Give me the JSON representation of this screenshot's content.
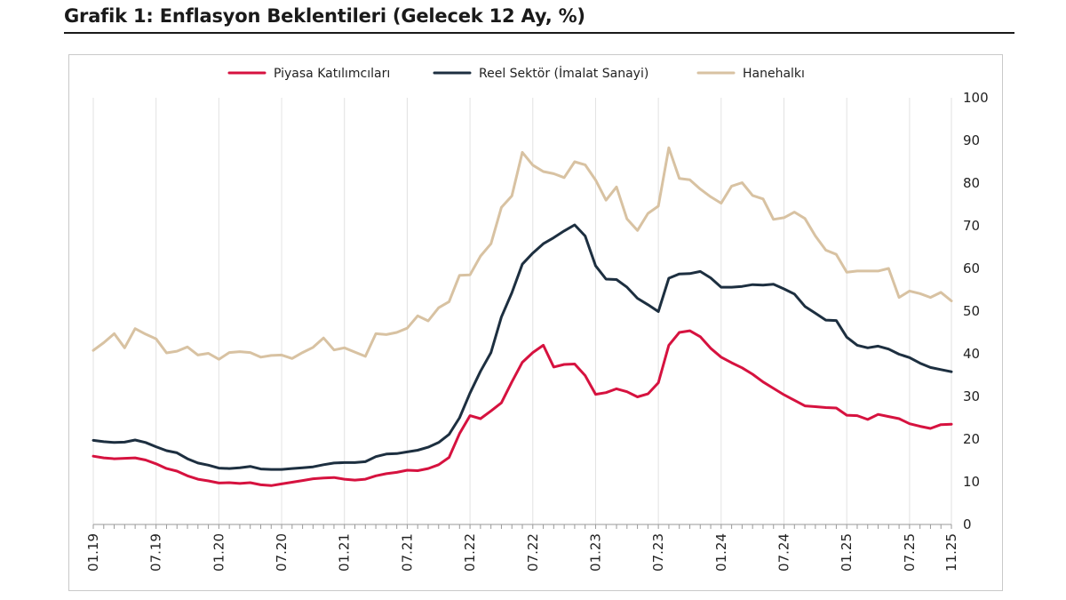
{
  "header": {
    "title": "Grafik 1: Enflasyon Beklentileri (Gelecek 12 Ay, %)"
  },
  "chart_data": {
    "type": "line",
    "title": "Grafik 1: Enflasyon Beklentileri (Gelecek 12 Ay, %)",
    "xlabel": "",
    "ylabel": "",
    "ylim": [
      0,
      100
    ],
    "y_ticks": [
      0,
      10,
      20,
      30,
      40,
      50,
      60,
      70,
      80,
      90,
      100
    ],
    "y_axis_side": "right",
    "grid": "vertical",
    "legend_position": "top",
    "x_tick_labels": [
      "01.19",
      "07.19",
      "01.20",
      "07.20",
      "01.21",
      "07.21",
      "01.22",
      "07.22",
      "01.23",
      "07.23",
      "01.24",
      "07.24",
      "01.25",
      "07.25",
      "11.25"
    ],
    "x": [
      "01.19",
      "02.19",
      "03.19",
      "04.19",
      "05.19",
      "06.19",
      "07.19",
      "08.19",
      "09.19",
      "10.19",
      "11.19",
      "12.19",
      "01.20",
      "02.20",
      "03.20",
      "04.20",
      "05.20",
      "06.20",
      "07.20",
      "08.20",
      "09.20",
      "10.20",
      "11.20",
      "12.20",
      "01.21",
      "02.21",
      "03.21",
      "04.21",
      "05.21",
      "06.21",
      "07.21",
      "08.21",
      "09.21",
      "10.21",
      "11.21",
      "12.21",
      "01.22",
      "02.22",
      "03.22",
      "04.22",
      "05.22",
      "06.22",
      "07.22",
      "08.22",
      "09.22",
      "10.22",
      "11.22",
      "12.22",
      "01.23",
      "02.23",
      "03.23",
      "04.23",
      "05.23",
      "06.23",
      "07.23",
      "08.23",
      "09.23",
      "10.23",
      "11.23",
      "12.23",
      "01.24",
      "02.24",
      "03.24",
      "04.24",
      "05.24",
      "06.24",
      "07.24",
      "08.24",
      "09.24",
      "10.24",
      "11.24",
      "12.24",
      "01.25",
      "02.25",
      "03.25",
      "04.25",
      "05.25",
      "06.25",
      "07.25",
      "08.25",
      "09.25",
      "10.25",
      "11.25"
    ],
    "series": [
      {
        "name": "Piyasa Katılımcıları",
        "color": "#d6123f",
        "values": [
          16.0,
          15.6,
          15.4,
          15.5,
          15.6,
          15.1,
          14.2,
          13.1,
          12.5,
          11.4,
          10.6,
          10.2,
          9.7,
          9.8,
          9.6,
          9.8,
          9.3,
          9.1,
          9.5,
          9.9,
          10.3,
          10.7,
          10.9,
          11.0,
          10.6,
          10.4,
          10.6,
          11.4,
          11.9,
          12.2,
          12.7,
          12.6,
          13.1,
          14.0,
          15.7,
          21.3,
          25.5,
          24.8,
          26.6,
          28.5,
          33.4,
          38.0,
          40.3,
          42.0,
          36.9,
          37.5,
          37.6,
          34.9,
          30.5,
          30.9,
          31.8,
          31.1,
          29.9,
          30.6,
          33.2,
          42.0,
          45.0,
          45.4,
          44.0,
          41.3,
          39.2,
          37.9,
          36.7,
          35.2,
          33.4,
          31.9,
          30.4,
          29.1,
          27.8,
          27.6,
          27.4,
          27.3,
          25.6,
          25.5,
          24.6,
          25.8,
          25.3,
          24.8,
          23.6,
          23.0,
          22.5,
          23.4,
          23.5
        ]
      },
      {
        "name": "Reel Sektör (İmalat Sanayi)",
        "color": "#1d2f40",
        "values": [
          19.7,
          19.4,
          19.2,
          19.3,
          19.8,
          19.2,
          18.2,
          17.3,
          16.8,
          15.4,
          14.4,
          13.9,
          13.2,
          13.1,
          13.3,
          13.6,
          13.0,
          12.9,
          12.9,
          13.1,
          13.3,
          13.5,
          14.0,
          14.4,
          14.5,
          14.5,
          14.7,
          15.9,
          16.5,
          16.6,
          17.0,
          17.4,
          18.1,
          19.2,
          21.1,
          25.0,
          30.8,
          35.9,
          40.3,
          48.6,
          54.3,
          61.0,
          63.6,
          65.8,
          67.2,
          68.8,
          70.2,
          67.6,
          60.6,
          57.5,
          57.4,
          55.6,
          53.0,
          51.5,
          49.9,
          57.7,
          58.7,
          58.8,
          59.3,
          57.8,
          55.6,
          55.6,
          55.8,
          56.2,
          56.1,
          56.3,
          55.2,
          54.0,
          51.1,
          49.5,
          47.9,
          47.8,
          43.9,
          42.0,
          41.4,
          41.8,
          41.1,
          39.9,
          39.1,
          37.8,
          36.8,
          36.3,
          35.8
        ]
      },
      {
        "name": "Hanehalkı",
        "color": "#d8c2a2",
        "values": [
          40.8,
          42.6,
          44.7,
          41.4,
          45.9,
          44.6,
          43.5,
          40.2,
          40.6,
          41.6,
          39.7,
          40.1,
          38.7,
          40.3,
          40.5,
          40.3,
          39.2,
          39.6,
          39.7,
          38.9,
          40.3,
          41.5,
          43.7,
          40.9,
          41.4,
          40.4,
          39.4,
          44.7,
          44.5,
          45.0,
          46.0,
          48.9,
          47.7,
          50.8,
          52.2,
          58.4,
          58.5,
          62.9,
          65.8,
          74.3,
          77.0,
          87.2,
          84.2,
          82.7,
          82.2,
          81.3,
          85.0,
          84.3,
          80.7,
          76.0,
          79.1,
          71.6,
          68.9,
          72.9,
          74.6,
          88.3,
          81.1,
          80.8,
          78.6,
          76.8,
          75.3,
          79.3,
          80.1,
          77.1,
          76.3,
          71.5,
          71.9,
          73.2,
          71.7,
          67.6,
          64.3,
          63.3,
          59.1,
          59.4,
          59.4,
          59.4,
          60.0,
          53.2,
          54.7,
          54.1,
          53.2,
          54.4,
          52.4
        ]
      }
    ]
  }
}
